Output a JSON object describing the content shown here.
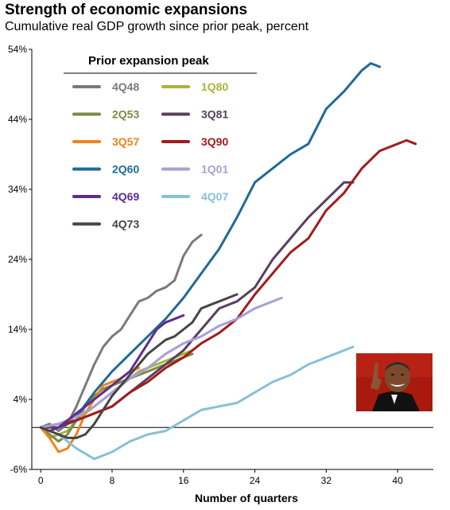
{
  "header": {
    "title": "Strength of economic expansions",
    "subtitle": "Cumulative real GDP growth since prior peak, percent"
  },
  "legend": {
    "title": "Prior expansion peak"
  },
  "photo": {
    "icon": "president-laughing-photo"
  },
  "chart_data": {
    "type": "line",
    "title": "Strength of economic expansions",
    "subtitle": "Cumulative real GDP growth since prior peak, percent",
    "xlabel": "Number of quarters",
    "ylabel": "",
    "xlim": [
      -1,
      44
    ],
    "ylim": [
      -6,
      54
    ],
    "xticks": [
      0,
      8,
      16,
      24,
      32,
      40
    ],
    "yticks": [
      -6,
      4,
      14,
      24,
      34,
      44,
      54
    ],
    "ytick_labels": [
      "-6%",
      "4%",
      "14%",
      "24%",
      "34%",
      "44%",
      "54%"
    ],
    "grid": false,
    "legend_position": "top-left",
    "series": [
      {
        "name": "4Q48",
        "color": "#7a7a7a",
        "x": [
          0,
          1,
          2,
          3,
          4,
          5,
          6,
          7,
          8,
          9,
          10,
          11,
          12,
          13,
          14,
          15,
          16,
          17,
          18
        ],
        "y": [
          0,
          0.5,
          -0.5,
          0.5,
          3,
          6,
          9,
          11.5,
          13,
          14,
          16,
          18,
          18.5,
          19.5,
          20,
          21,
          24.5,
          26.5,
          27.5
        ]
      },
      {
        "name": "1Q80",
        "color": "#a9b33a",
        "x": [
          0,
          1,
          2,
          3,
          4,
          5,
          6,
          7,
          8,
          9,
          10,
          11,
          12,
          13,
          14,
          15,
          16,
          17
        ],
        "y": [
          0,
          -1.5,
          -1,
          -0.5,
          1,
          2,
          3,
          4,
          5,
          6,
          7,
          8,
          8.5,
          9,
          9.5,
          10,
          10.5,
          11
        ]
      },
      {
        "name": "2Q53",
        "color": "#7b8c45",
        "x": [
          0,
          1,
          2,
          3,
          4,
          5,
          6,
          7,
          8,
          9,
          10,
          11,
          12,
          13,
          14,
          15,
          16,
          17
        ],
        "y": [
          0,
          -1,
          -2,
          -1,
          1,
          3,
          4.5,
          5.5,
          6,
          6.5,
          7,
          7.5,
          8,
          8.5,
          9,
          9.5,
          10,
          10.5
        ]
      },
      {
        "name": "3Q81",
        "color": "#5a3f5e",
        "x": [
          0,
          2,
          4,
          6,
          8,
          10,
          12,
          14,
          16,
          18,
          20,
          22,
          24,
          26,
          28,
          30,
          32,
          34,
          35
        ],
        "y": [
          0,
          0,
          1,
          2,
          3,
          5,
          7,
          9,
          11,
          14,
          17,
          18,
          20,
          24,
          27,
          30,
          32.5,
          35,
          35
        ]
      },
      {
        "name": "3Q57",
        "color": "#f0831e",
        "x": [
          0,
          1,
          2,
          3,
          4,
          5,
          6,
          7,
          8,
          9,
          10,
          11
        ],
        "y": [
          0,
          -1.5,
          -3.5,
          -3,
          -1,
          2,
          4,
          6,
          6.5,
          7,
          8,
          8.5
        ]
      },
      {
        "name": "3Q90",
        "color": "#a11c1e",
        "x": [
          0,
          2,
          4,
          6,
          8,
          10,
          12,
          14,
          16,
          18,
          20,
          22,
          24,
          26,
          28,
          30,
          32,
          34,
          36,
          38,
          40,
          41,
          42
        ],
        "y": [
          0,
          0.5,
          1,
          2,
          3,
          5,
          6.5,
          8.5,
          10,
          12,
          13.5,
          15.5,
          19,
          22,
          25,
          27,
          31,
          33.5,
          37,
          39.5,
          40.5,
          41,
          40.5
        ]
      },
      {
        "name": "2Q60",
        "color": "#1f6a96",
        "x": [
          0,
          2,
          4,
          6,
          8,
          10,
          12,
          14,
          16,
          18,
          20,
          22,
          24,
          26,
          28,
          30,
          32,
          34,
          36,
          37,
          38
        ],
        "y": [
          0,
          0.5,
          1.5,
          5,
          8,
          10.5,
          13,
          15.5,
          18.5,
          22,
          25.5,
          30,
          35,
          37,
          39,
          40.5,
          45.5,
          48,
          51,
          52,
          51.5
        ]
      },
      {
        "name": "1Q01",
        "color": "#a99ed6",
        "x": [
          0,
          2,
          4,
          6,
          8,
          10,
          12,
          14,
          16,
          18,
          20,
          22,
          24,
          26,
          27
        ],
        "y": [
          0,
          0.5,
          1.5,
          3,
          5,
          7,
          8.5,
          10.5,
          12,
          13,
          14.5,
          15.5,
          17,
          18,
          18.5
        ]
      },
      {
        "name": "4Q69",
        "color": "#5e2d8e",
        "x": [
          0,
          1,
          2,
          3,
          4,
          5,
          6,
          7,
          8,
          9,
          10,
          11,
          12,
          13,
          14,
          15,
          16
        ],
        "y": [
          0,
          -0.5,
          0,
          1,
          2,
          3,
          4,
          5,
          6,
          7,
          8,
          10,
          12,
          14,
          15,
          15.5,
          16
        ]
      },
      {
        "name": "4Q07",
        "color": "#87c0d9",
        "x": [
          0,
          2,
          4,
          6,
          8,
          10,
          12,
          14,
          16,
          18,
          20,
          22,
          24,
          26,
          28,
          30,
          32,
          34,
          35
        ],
        "y": [
          0,
          -1,
          -3,
          -4.5,
          -3.5,
          -2,
          -1,
          -0.5,
          1,
          2.5,
          3,
          3.5,
          5,
          6.5,
          7.5,
          9,
          10,
          11,
          11.5
        ]
      },
      {
        "name": "4Q73",
        "color": "#4a4444",
        "x": [
          0,
          1,
          2,
          3,
          4,
          5,
          6,
          7,
          8,
          9,
          10,
          11,
          12,
          13,
          14,
          15,
          16,
          17,
          18,
          19,
          20,
          21,
          22
        ],
        "y": [
          0,
          -0.5,
          -1,
          -1.5,
          -1.5,
          -1,
          0.5,
          2.5,
          4.5,
          6,
          7.5,
          9,
          10.5,
          11.5,
          12.5,
          13,
          14,
          15,
          17,
          17.5,
          18,
          18.5,
          19
        ]
      }
    ]
  }
}
